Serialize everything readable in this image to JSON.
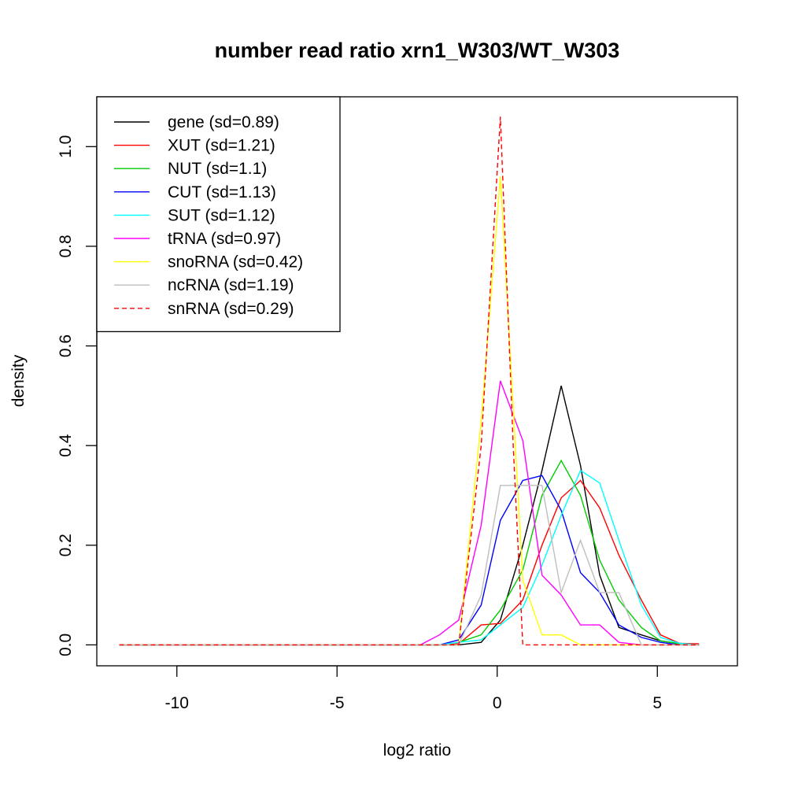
{
  "chart_data": {
    "type": "line",
    "title": "number read ratio xrn1_W303/WT_W303",
    "xlabel": "log2 ratio",
    "ylabel": "density",
    "xlim": [
      -12.5,
      7.5
    ],
    "ylim": [
      -0.042,
      1.1
    ],
    "xticks": [
      -10,
      -5,
      0,
      5
    ],
    "xtick_labels": [
      "-10",
      "-5",
      "0",
      "5"
    ],
    "yticks": [
      0.0,
      0.2,
      0.4,
      0.6,
      0.8,
      1.0
    ],
    "ytick_labels": [
      "0.0",
      "0.2",
      "0.4",
      "0.6",
      "0.8",
      "1.0"
    ],
    "grid": false,
    "legend_position": "top-left",
    "series": [
      {
        "name": "gene (sd=0.89)",
        "color": "#000000",
        "dash": false,
        "x": [
          -11.8,
          -1.2,
          -0.5,
          0.1,
          0.8,
          1.4,
          2.0,
          2.6,
          3.2,
          3.8,
          4.5,
          5.1,
          5.7,
          6.3
        ],
        "y": [
          0,
          0,
          0.005,
          0.05,
          0.2,
          0.35,
          0.52,
          0.36,
          0.14,
          0.035,
          0.02,
          0.008,
          0.002,
          0
        ]
      },
      {
        "name": "XUT (sd=1.21)",
        "color": "#ff0000",
        "dash": false,
        "x": [
          -11.8,
          -1.8,
          -1.2,
          -0.5,
          0.1,
          0.8,
          1.4,
          2.0,
          2.6,
          3.2,
          3.8,
          4.5,
          5.1,
          5.7,
          6.3
        ],
        "y": [
          0,
          0,
          0.002,
          0.04,
          0.043,
          0.09,
          0.2,
          0.295,
          0.33,
          0.275,
          0.18,
          0.09,
          0.02,
          0.003,
          0.002
        ]
      },
      {
        "name": "NUT (sd=1.1)",
        "color": "#00cd00",
        "dash": false,
        "x": [
          -11.8,
          -1.8,
          -1.2,
          -0.5,
          0.1,
          0.8,
          1.4,
          2.0,
          2.6,
          3.2,
          3.8,
          4.5,
          5.1,
          5.7,
          6.3
        ],
        "y": [
          0,
          0,
          0.005,
          0.02,
          0.07,
          0.15,
          0.3,
          0.37,
          0.3,
          0.17,
          0.09,
          0.035,
          0.008,
          0.002,
          0
        ]
      },
      {
        "name": "CUT (sd=1.13)",
        "color": "#0000ff",
        "dash": false,
        "x": [
          -11.8,
          -1.8,
          -1.2,
          -0.5,
          0.1,
          0.8,
          1.4,
          2.0,
          2.6,
          3.2,
          3.8,
          4.5,
          5.1,
          5.7,
          6.3
        ],
        "y": [
          0,
          0,
          0.01,
          0.08,
          0.25,
          0.33,
          0.34,
          0.27,
          0.145,
          0.105,
          0.04,
          0.015,
          0.005,
          0,
          0
        ]
      },
      {
        "name": "SUT (sd=1.12)",
        "color": "#00ffff",
        "dash": false,
        "x": [
          -11.8,
          -1.8,
          -1.2,
          -0.5,
          0.1,
          0.8,
          1.4,
          2.0,
          2.6,
          3.2,
          3.8,
          4.5,
          5.1,
          5.7,
          6.3
        ],
        "y": [
          0,
          0,
          0.005,
          0.01,
          0.04,
          0.075,
          0.16,
          0.26,
          0.35,
          0.325,
          0.21,
          0.08,
          0.015,
          0.003,
          0
        ]
      },
      {
        "name": "tRNA (sd=0.97)",
        "color": "#ff00ff",
        "dash": false,
        "x": [
          -11.8,
          -2.4,
          -1.8,
          -1.2,
          -0.5,
          0.1,
          0.8,
          1.4,
          2.0,
          2.6,
          3.2,
          3.8,
          4.5,
          6.3
        ],
        "y": [
          0,
          0,
          0.02,
          0.05,
          0.24,
          0.53,
          0.41,
          0.14,
          0.1,
          0.04,
          0.04,
          0.005,
          0,
          0
        ]
      },
      {
        "name": "snoRNA (sd=0.42)",
        "color": "#ffff00",
        "dash": false,
        "x": [
          -11.8,
          -1.2,
          -0.5,
          0.1,
          0.8,
          1.4,
          2.0,
          2.6,
          6.3
        ],
        "y": [
          0,
          0,
          0.45,
          0.94,
          0.13,
          0.02,
          0.02,
          0,
          0
        ]
      },
      {
        "name": "ncRNA (sd=1.19)",
        "color": "#bebebe",
        "dash": false,
        "x": [
          -11.8,
          -1.2,
          -0.5,
          0.1,
          0.8,
          1.4,
          2.0,
          2.6,
          3.2,
          3.8,
          4.5,
          6.3
        ],
        "y": [
          0,
          0,
          0.1,
          0.32,
          0.32,
          0.32,
          0.105,
          0.21,
          0.105,
          0.105,
          0,
          0
        ]
      },
      {
        "name": "snRNA (sd=0.29)",
        "color": "#ff0000",
        "dash": true,
        "x": [
          -11.8,
          -1.2,
          -0.5,
          0.1,
          0.5,
          0.8,
          6.3
        ],
        "y": [
          0,
          0,
          0.4,
          1.06,
          0.4,
          0,
          0
        ]
      }
    ]
  }
}
